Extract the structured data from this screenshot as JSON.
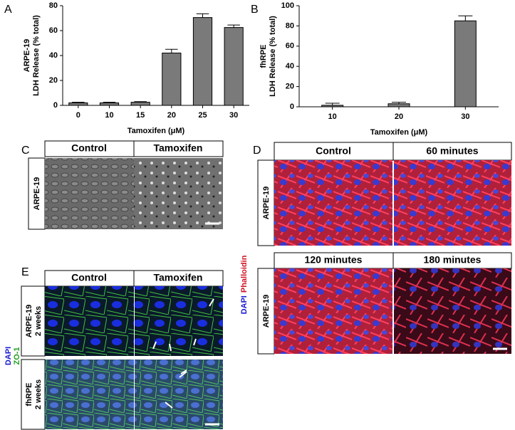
{
  "chart_data": [
    {
      "type": "bar",
      "panel": "A",
      "ylabel": [
        "ARPE-19",
        "LDH Release (% total)"
      ],
      "xlabel": "Tamoxifen (μM)",
      "categories": [
        "0",
        "10",
        "15",
        "20",
        "25",
        "30"
      ],
      "values": [
        2,
        2,
        2.5,
        42,
        70.5,
        62.5
      ],
      "errors": [
        0.5,
        0.5,
        0.5,
        3,
        3,
        2
      ],
      "color": "#7a7a7a",
      "ylim": [
        0,
        80
      ],
      "yticks": [
        0,
        20,
        40,
        60,
        80
      ]
    },
    {
      "type": "bar",
      "panel": "B",
      "ylabel": [
        "fhRPE",
        "LDH Release (% total)"
      ],
      "xlabel": "Tamoxifen (μM)",
      "categories": [
        "10",
        "20",
        "30"
      ],
      "values": [
        1.5,
        3,
        85
      ],
      "errors": [
        2,
        1.5,
        5
      ],
      "color": "#7a7a7a",
      "ylim": [
        0,
        100
      ],
      "yticks": [
        0,
        20,
        40,
        60,
        80,
        100
      ]
    }
  ],
  "panels": {
    "C": {
      "label": "C",
      "columns": [
        "Control",
        "Tamoxifen"
      ],
      "rows": [
        "ARPE-19"
      ]
    },
    "D": {
      "label": "D",
      "columns": [
        [
          "Control",
          "60 minutes"
        ],
        [
          "120 minutes",
          "180 minutes"
        ]
      ],
      "rows": [
        "ARPE-19",
        "ARPE-19"
      ],
      "stain": [
        "DAPI",
        "Phalloidin"
      ]
    },
    "E": {
      "label": "E",
      "columns": [
        "Control",
        "Tamoxifen"
      ],
      "rows": [
        [
          "ARPE-19",
          "2 weeks"
        ],
        [
          "fhRPE",
          "2 weeks"
        ]
      ],
      "stain": [
        "DAPI",
        "ZO-1"
      ]
    }
  }
}
